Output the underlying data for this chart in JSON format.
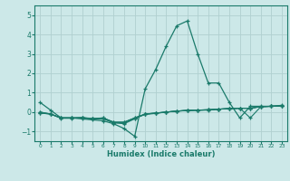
{
  "x": [
    0,
    1,
    2,
    3,
    4,
    5,
    6,
    7,
    8,
    9,
    10,
    11,
    12,
    13,
    14,
    15,
    16,
    17,
    18,
    19,
    20,
    21,
    22,
    23
  ],
  "line_main": [
    0.5,
    0.1,
    -0.3,
    -0.3,
    -0.35,
    -0.4,
    -0.45,
    -0.6,
    -0.85,
    -1.25,
    1.2,
    2.2,
    3.4,
    4.45,
    4.7,
    3.0,
    1.5,
    1.5,
    0.5,
    -0.3,
    0.3,
    0.3,
    0.3,
    0.35
  ],
  "line_a": [
    0.0,
    -0.1,
    -0.3,
    -0.3,
    -0.3,
    -0.35,
    -0.35,
    -0.55,
    -0.6,
    -0.35,
    -0.1,
    -0.05,
    0.0,
    0.05,
    0.1,
    0.1,
    0.12,
    0.15,
    0.18,
    0.2,
    0.2,
    0.28,
    0.3,
    0.32
  ],
  "line_b": [
    -0.05,
    -0.1,
    -0.32,
    -0.32,
    -0.28,
    -0.35,
    -0.32,
    -0.55,
    -0.55,
    -0.32,
    -0.12,
    -0.07,
    0.0,
    0.05,
    0.08,
    0.1,
    0.12,
    0.15,
    0.18,
    0.2,
    0.2,
    0.28,
    0.3,
    0.32
  ],
  "line_c": [
    -0.05,
    -0.1,
    -0.3,
    -0.3,
    -0.28,
    -0.33,
    -0.3,
    -0.52,
    -0.52,
    -0.3,
    -0.1,
    -0.05,
    0.0,
    0.05,
    0.08,
    0.1,
    0.12,
    0.15,
    0.18,
    0.2,
    -0.3,
    0.28,
    0.3,
    0.32
  ],
  "line_d": [
    0.0,
    -0.1,
    -0.3,
    -0.3,
    -0.3,
    -0.35,
    -0.3,
    -0.52,
    -0.52,
    -0.3,
    -0.1,
    -0.05,
    0.0,
    0.05,
    0.08,
    0.1,
    0.1,
    0.15,
    0.18,
    0.2,
    0.2,
    0.28,
    0.3,
    0.32
  ],
  "bg_color": "#cce8e8",
  "grid_color": "#b0d0d0",
  "line_color": "#1a7a6a",
  "xlabel": "Humidex (Indice chaleur)",
  "ylim": [
    -1.5,
    5.5
  ],
  "xlim": [
    -0.5,
    23.5
  ],
  "yticks": [
    -1,
    0,
    1,
    2,
    3,
    4,
    5
  ],
  "xticks": [
    0,
    1,
    2,
    3,
    4,
    5,
    6,
    7,
    8,
    9,
    10,
    11,
    12,
    13,
    14,
    15,
    16,
    17,
    18,
    19,
    20,
    21,
    22,
    23
  ]
}
